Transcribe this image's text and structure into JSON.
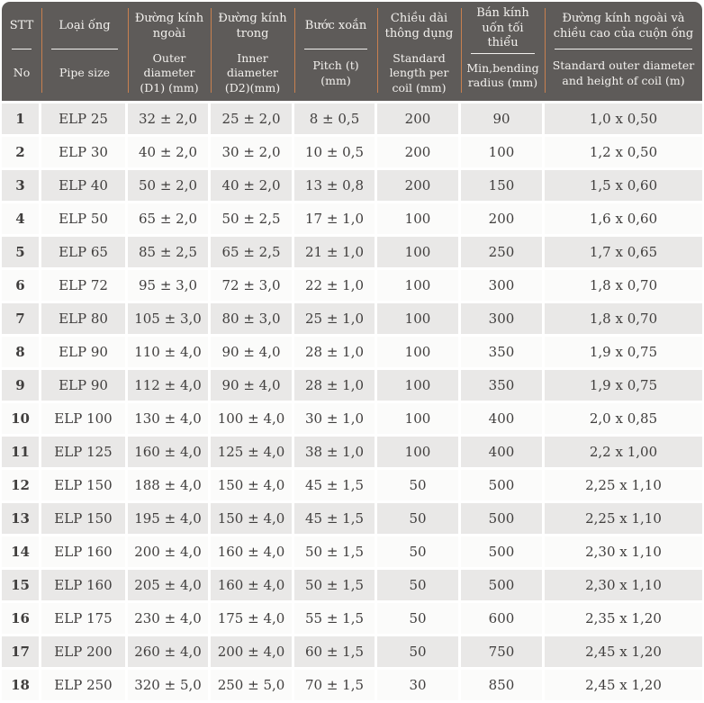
{
  "colors": {
    "header_bg": "#5e5b59",
    "header_text": "#f3f1ee",
    "header_divider": "#c8804f",
    "row_odd": "#e9e8e7",
    "row_even": "#fbfbfa",
    "body_text": "#403e3d"
  },
  "table": {
    "columns": [
      {
        "vi": "STT",
        "en": "No"
      },
      {
        "vi": "Loại ống",
        "en": "Pipe size"
      },
      {
        "vi": "Đường kính ngoài",
        "en": "Outer diameter (D1) (mm)"
      },
      {
        "vi": "Đường kính trong",
        "en": "Inner diameter (D2)(mm)"
      },
      {
        "vi": "Bước xoắn",
        "en": "Pitch (t)(mm)"
      },
      {
        "vi": "Chiều dài thông dụng",
        "en": "Standard length per coil (mm)"
      },
      {
        "vi": "Bán kính uốn tối thiểu",
        "en": "Min,bending radius (mm)"
      },
      {
        "vi": "Đường kính ngoài và chiều cao của cuộn ống",
        "en": "Standard outer diameter and height of coil (m)"
      }
    ],
    "rows": [
      [
        "1",
        "ELP 25",
        "32 ± 2,0",
        "25 ± 2,0",
        "8 ± 0,5",
        "200",
        "90",
        "1,0 x 0,50"
      ],
      [
        "2",
        "ELP 30",
        "40 ± 2,0",
        "30 ± 2,0",
        "10 ± 0,5",
        "200",
        "100",
        "1,2 x 0,50"
      ],
      [
        "3",
        "ELP 40",
        "50 ± 2,0",
        "40 ± 2,0",
        "13 ± 0,8",
        "200",
        "150",
        "1,5 x 0,60"
      ],
      [
        "4",
        "ELP 50",
        "65 ± 2,0",
        "50 ± 2,5",
        "17 ± 1,0",
        "100",
        "200",
        "1,6 x 0,60"
      ],
      [
        "5",
        "ELP 65",
        "85 ± 2,5",
        "65 ± 2,5",
        "21 ± 1,0",
        "100",
        "250",
        "1,7 x 0,65"
      ],
      [
        "6",
        "ELP 72",
        "95 ± 3,0",
        "72 ± 3,0",
        "22 ± 1,0",
        "100",
        "300",
        "1,8 x 0,70"
      ],
      [
        "7",
        "ELP 80",
        "105 ± 3,0",
        "80 ± 3,0",
        "25 ± 1,0",
        "100",
        "300",
        "1,8 x 0,70"
      ],
      [
        "8",
        "ELP 90",
        "110 ± 4,0",
        "90 ± 4,0",
        "28 ± 1,0",
        "100",
        "350",
        "1,9 x 0,75"
      ],
      [
        "9",
        "ELP 90",
        "112 ± 4,0",
        "90 ± 4,0",
        "28 ± 1,0",
        "100",
        "350",
        "1,9 x 0,75"
      ],
      [
        "10",
        "ELP 100",
        "130 ± 4,0",
        "100 ± 4,0",
        "30 ± 1,0",
        "100",
        "400",
        "2,0 x 0,85"
      ],
      [
        "11",
        "ELP 125",
        "160 ± 4,0",
        "125 ± 4,0",
        "38 ± 1,0",
        "100",
        "400",
        "2,2 x 1,00"
      ],
      [
        "12",
        "ELP 150",
        "188 ± 4,0",
        "150 ± 4,0",
        "45 ± 1,5",
        "50",
        "500",
        "2,25 x 1,10"
      ],
      [
        "13",
        "ELP 150",
        "195 ± 4,0",
        "150 ± 4,0",
        "45 ± 1,5",
        "50",
        "500",
        "2,25 x 1,10"
      ],
      [
        "14",
        "ELP 160",
        "200 ± 4,0",
        "160 ± 4,0",
        "50 ± 1,5",
        "50",
        "500",
        "2,30 x 1,10"
      ],
      [
        "15",
        "ELP 160",
        "205 ± 4,0",
        "160 ± 4,0",
        "50 ± 1,5",
        "50",
        "500",
        "2,30 x 1,10"
      ],
      [
        "16",
        "ELP 175",
        "230 ± 4,0",
        "175 ± 4,0",
        "55 ± 1,5",
        "50",
        "600",
        "2,35 x 1,20"
      ],
      [
        "17",
        "ELP 200",
        "260 ± 4,0",
        "200 ± 4,0",
        "60 ± 1,5",
        "50",
        "750",
        "2,45 x 1,20"
      ],
      [
        "18",
        "ELP 250",
        "320 ± 5,0",
        "250 ± 5,0",
        "70 ± 1,5",
        "30",
        "850",
        "2,45 x 1,20"
      ]
    ]
  }
}
